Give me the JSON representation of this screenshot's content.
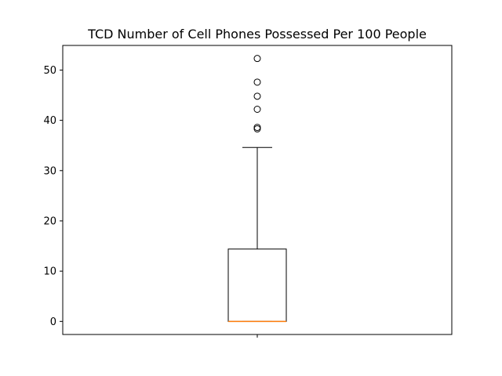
{
  "chart_data": {
    "type": "box",
    "title": "TCD Number of Cell Phones Possessed Per 100 People",
    "xlabel": "",
    "ylabel": "",
    "ylim": [
      -2.6,
      54.9
    ],
    "yticks": [
      0,
      10,
      20,
      30,
      40,
      50
    ],
    "ytick_labels": [
      "0",
      "10",
      "20",
      "30",
      "40",
      "50"
    ],
    "grid": false,
    "box": {
      "min_whisker": 0,
      "q1": 0,
      "median": 0,
      "q3": 14.4,
      "max_whisker": 34.6,
      "outliers": [
        38.3,
        38.6,
        42.2,
        44.8,
        47.6,
        52.3
      ]
    },
    "colors": {
      "box": "#000000",
      "median": "#ff7f0e",
      "outlier_edge": "#000000"
    }
  }
}
